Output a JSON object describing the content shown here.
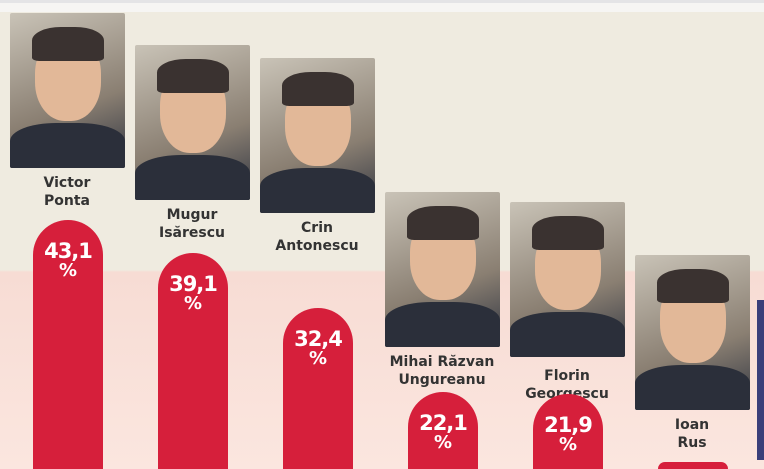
{
  "chart_data": {
    "type": "bar",
    "categories": [
      "Victor Ponta",
      "Mugur Isărescu",
      "Crin Antonescu",
      "Mihai Răzvan Ungureanu",
      "Florin Georgescu",
      "Ioan Rus"
    ],
    "name_lines": [
      [
        "Victor",
        "Ponta"
      ],
      [
        "Mugur",
        "Isărescu"
      ],
      [
        "Crin",
        "Antonescu"
      ],
      [
        "Mihai Răzvan",
        "Ungureanu"
      ],
      [
        "Florin",
        "Georgescu"
      ],
      [
        "Ioan",
        "Rus"
      ]
    ],
    "values": [
      43.1,
      39.1,
      32.4,
      22.1,
      21.9,
      null
    ],
    "value_labels": [
      "43,1",
      "39,1",
      "32,4",
      "22,1",
      "21,9",
      ""
    ],
    "unit": "%",
    "bar_color": "#d61f3b"
  }
}
